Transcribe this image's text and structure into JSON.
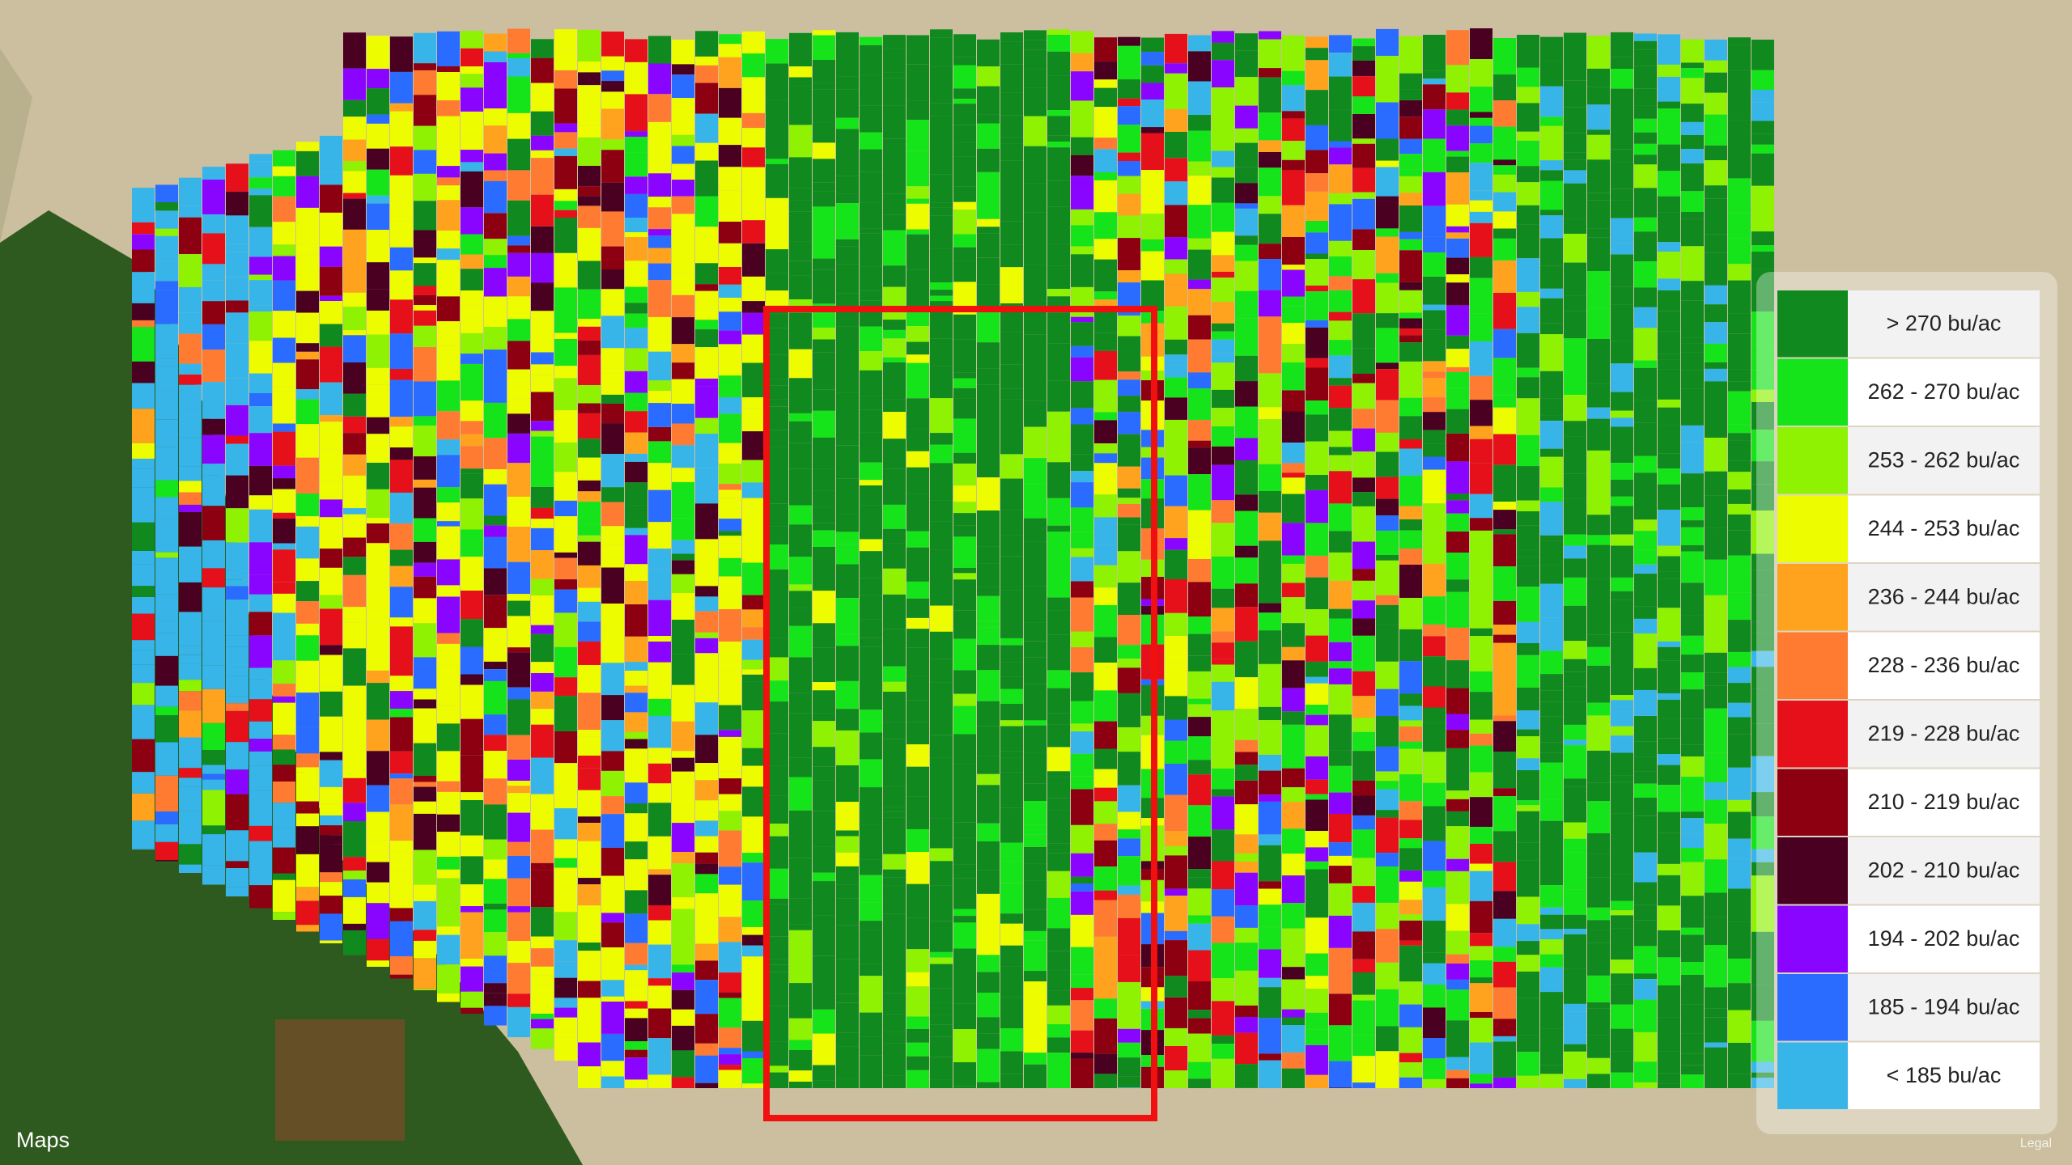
{
  "legend": {
    "entries": [
      {
        "label": "> 270 bu/ac",
        "color": "#10891f"
      },
      {
        "label": "262 - 270 bu/ac",
        "color": "#16e41b"
      },
      {
        "label": "253 - 262 bu/ac",
        "color": "#8ef202"
      },
      {
        "label": "244 - 253 bu/ac",
        "color": "#eefc00"
      },
      {
        "label": "236 - 244 bu/ac",
        "color": "#ffa21d"
      },
      {
        "label": "228 - 236 bu/ac",
        "color": "#ff7b32"
      },
      {
        "label": "219 - 228 bu/ac",
        "color": "#e6101b"
      },
      {
        "label": "210 - 219 bu/ac",
        "color": "#8d0012"
      },
      {
        "label": "202 - 210 bu/ac",
        "color": "#4a0020"
      },
      {
        "label": "194 - 202 bu/ac",
        "color": "#8a05ff"
      },
      {
        "label": "185 - 194 bu/ac",
        "color": "#2a6cff"
      },
      {
        "label": "< 185 bu/ac",
        "color": "#38b5e8"
      }
    ]
  },
  "attribution": {
    "maps": "Maps",
    "legal": "Legal"
  }
}
